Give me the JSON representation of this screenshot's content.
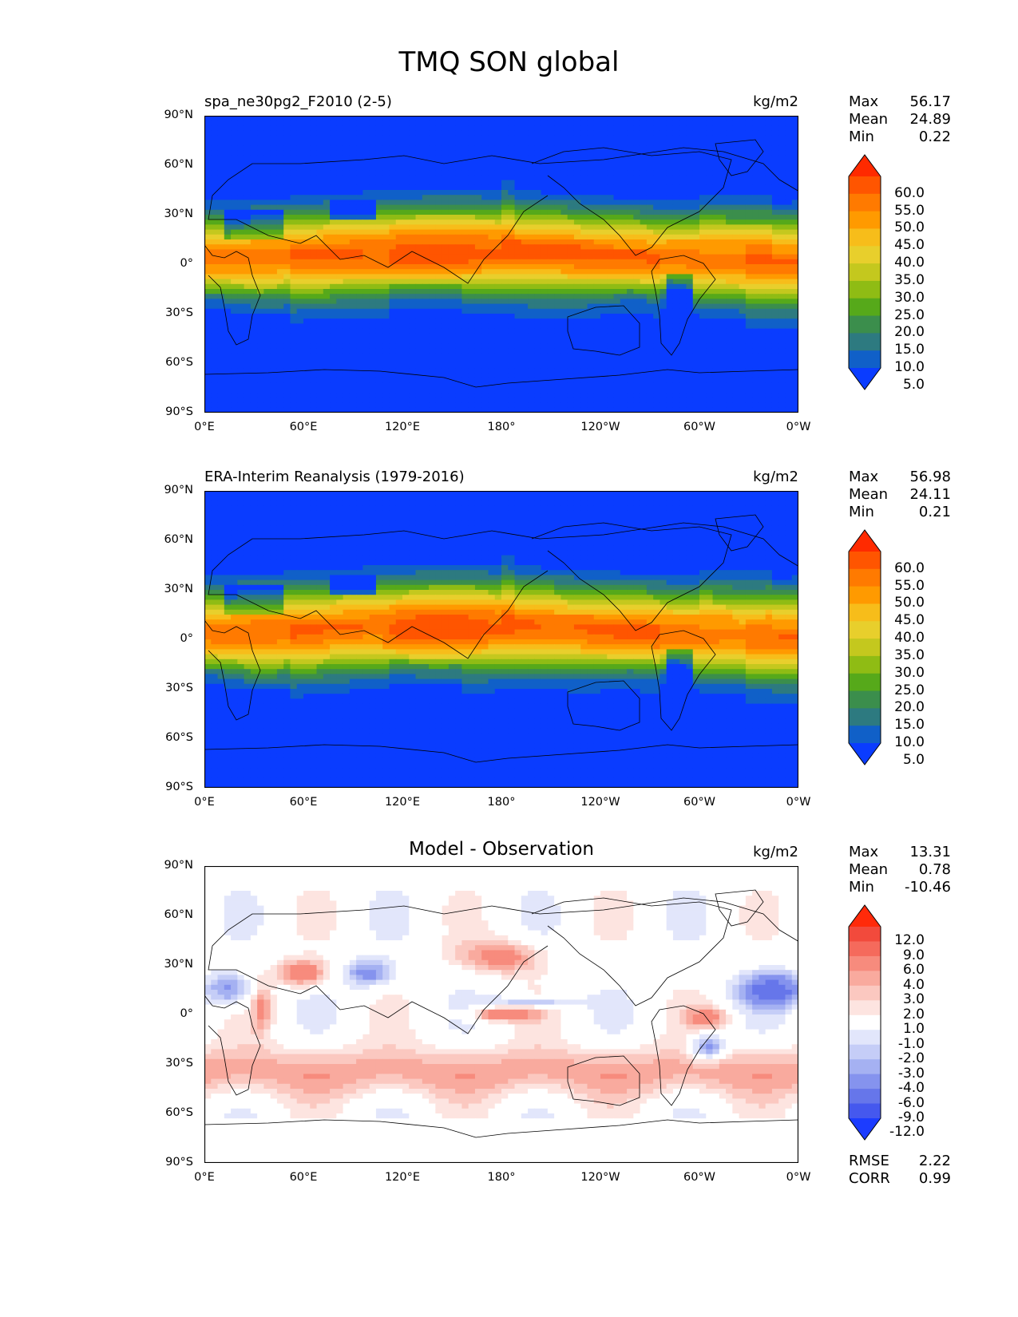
{
  "figure_title": "TMQ SON global",
  "lat_ticks": [
    "90°N",
    "60°N",
    "30°N",
    "0°",
    "30°S",
    "60°S",
    "90°S"
  ],
  "lon_ticks": [
    "0°E",
    "60°E",
    "120°E",
    "180°",
    "120°W",
    "60°W",
    "0°W"
  ],
  "panels": [
    {
      "title": "spa_ne30pg2_F2010 (2-5)",
      "units": "kg/m2",
      "stats": {
        "max_label": "Max",
        "max": "56.17",
        "mean_label": "Mean",
        "mean": "24.89",
        "min_label": "Min",
        "min": "0.22"
      }
    },
    {
      "title": "ERA-Interim Reanalysis (1979-2016)",
      "units": "kg/m2",
      "stats": {
        "max_label": "Max",
        "max": "56.98",
        "mean_label": "Mean",
        "mean": "24.11",
        "min_label": "Min",
        "min": "0.21"
      }
    },
    {
      "title": "Model - Observation",
      "units": "kg/m2",
      "stats": {
        "max_label": "Max",
        "max": "13.31",
        "mean_label": "Mean",
        "mean": "0.78",
        "min_label": "Min",
        "min": "-10.46"
      },
      "metrics": {
        "rmse_label": "RMSE",
        "rmse": "2.22",
        "corr_label": "CORR",
        "corr": "0.99"
      }
    }
  ],
  "colorbar_main": {
    "labels": [
      "60.0",
      "55.0",
      "50.0",
      "45.0",
      "40.0",
      "35.0",
      "30.0",
      "25.0",
      "20.0",
      "15.0",
      "10.0",
      "5.0"
    ],
    "colors": [
      "#ff2a00",
      "#ff5500",
      "#ff7a00",
      "#ff9a00",
      "#f7bd1a",
      "#e8cf2c",
      "#c4c81e",
      "#8fbc14",
      "#56a91a",
      "#3b8e4c",
      "#2d7a80",
      "#1060c8",
      "#0a3cff"
    ]
  },
  "colorbar_diff": {
    "labels": [
      "12.0",
      "9.0",
      "6.0",
      "4.0",
      "3.0",
      "2.0",
      "1.0",
      "-1.0",
      "-2.0",
      "-3.0",
      "-4.0",
      "-6.0",
      "-9.0",
      "-12.0"
    ],
    "colors": [
      "#ff2a0a",
      "#f24a3c",
      "#f56a5c",
      "#f78b7d",
      "#f9aa9e",
      "#fbc8c0",
      "#fde4e0",
      "#ffffff",
      "#e2e6fb",
      "#c5cdf7",
      "#a5b1f2",
      "#8593ee",
      "#6676ea",
      "#4558ee",
      "#1c3cff"
    ]
  },
  "chart_data": [
    {
      "type": "heatmap",
      "title": "spa_ne30pg2_F2010 (2-5)",
      "units": "kg/m2",
      "xlim": [
        0,
        360
      ],
      "ylim": [
        -90,
        90
      ],
      "x_ticks": [
        "0°E",
        "60°E",
        "120°E",
        "180°",
        "120°W",
        "60°W",
        "0°W"
      ],
      "y_ticks": [
        "90°N",
        "60°N",
        "30°N",
        "0°",
        "30°S",
        "60°S",
        "90°S"
      ],
      "levels": [
        5,
        10,
        15,
        20,
        25,
        30,
        35,
        40,
        45,
        50,
        55,
        60
      ],
      "max": 56.17,
      "mean": 24.89,
      "min": 0.22
    },
    {
      "type": "heatmap",
      "title": "ERA-Interim Reanalysis (1979-2016)",
      "units": "kg/m2",
      "xlim": [
        0,
        360
      ],
      "ylim": [
        -90,
        90
      ],
      "x_ticks": [
        "0°E",
        "60°E",
        "120°E",
        "180°",
        "120°W",
        "60°W",
        "0°W"
      ],
      "y_ticks": [
        "90°N",
        "60°N",
        "30°N",
        "0°",
        "30°S",
        "60°S",
        "90°S"
      ],
      "levels": [
        5,
        10,
        15,
        20,
        25,
        30,
        35,
        40,
        45,
        50,
        55,
        60
      ],
      "max": 56.98,
      "mean": 24.11,
      "min": 0.21
    },
    {
      "type": "heatmap",
      "title": "Model - Observation",
      "units": "kg/m2",
      "xlim": [
        0,
        360
      ],
      "ylim": [
        -90,
        90
      ],
      "x_ticks": [
        "0°E",
        "60°E",
        "120°E",
        "180°",
        "120°W",
        "60°W",
        "0°W"
      ],
      "y_ticks": [
        "90°N",
        "60°N",
        "30°N",
        "0°",
        "30°S",
        "60°S",
        "90°S"
      ],
      "levels": [
        -12,
        -9,
        -6,
        -4,
        -3,
        -2,
        -1,
        1,
        2,
        3,
        4,
        6,
        9,
        12
      ],
      "max": 13.31,
      "mean": 0.78,
      "min": -10.46,
      "rmse": 2.22,
      "corr": 0.99
    }
  ]
}
